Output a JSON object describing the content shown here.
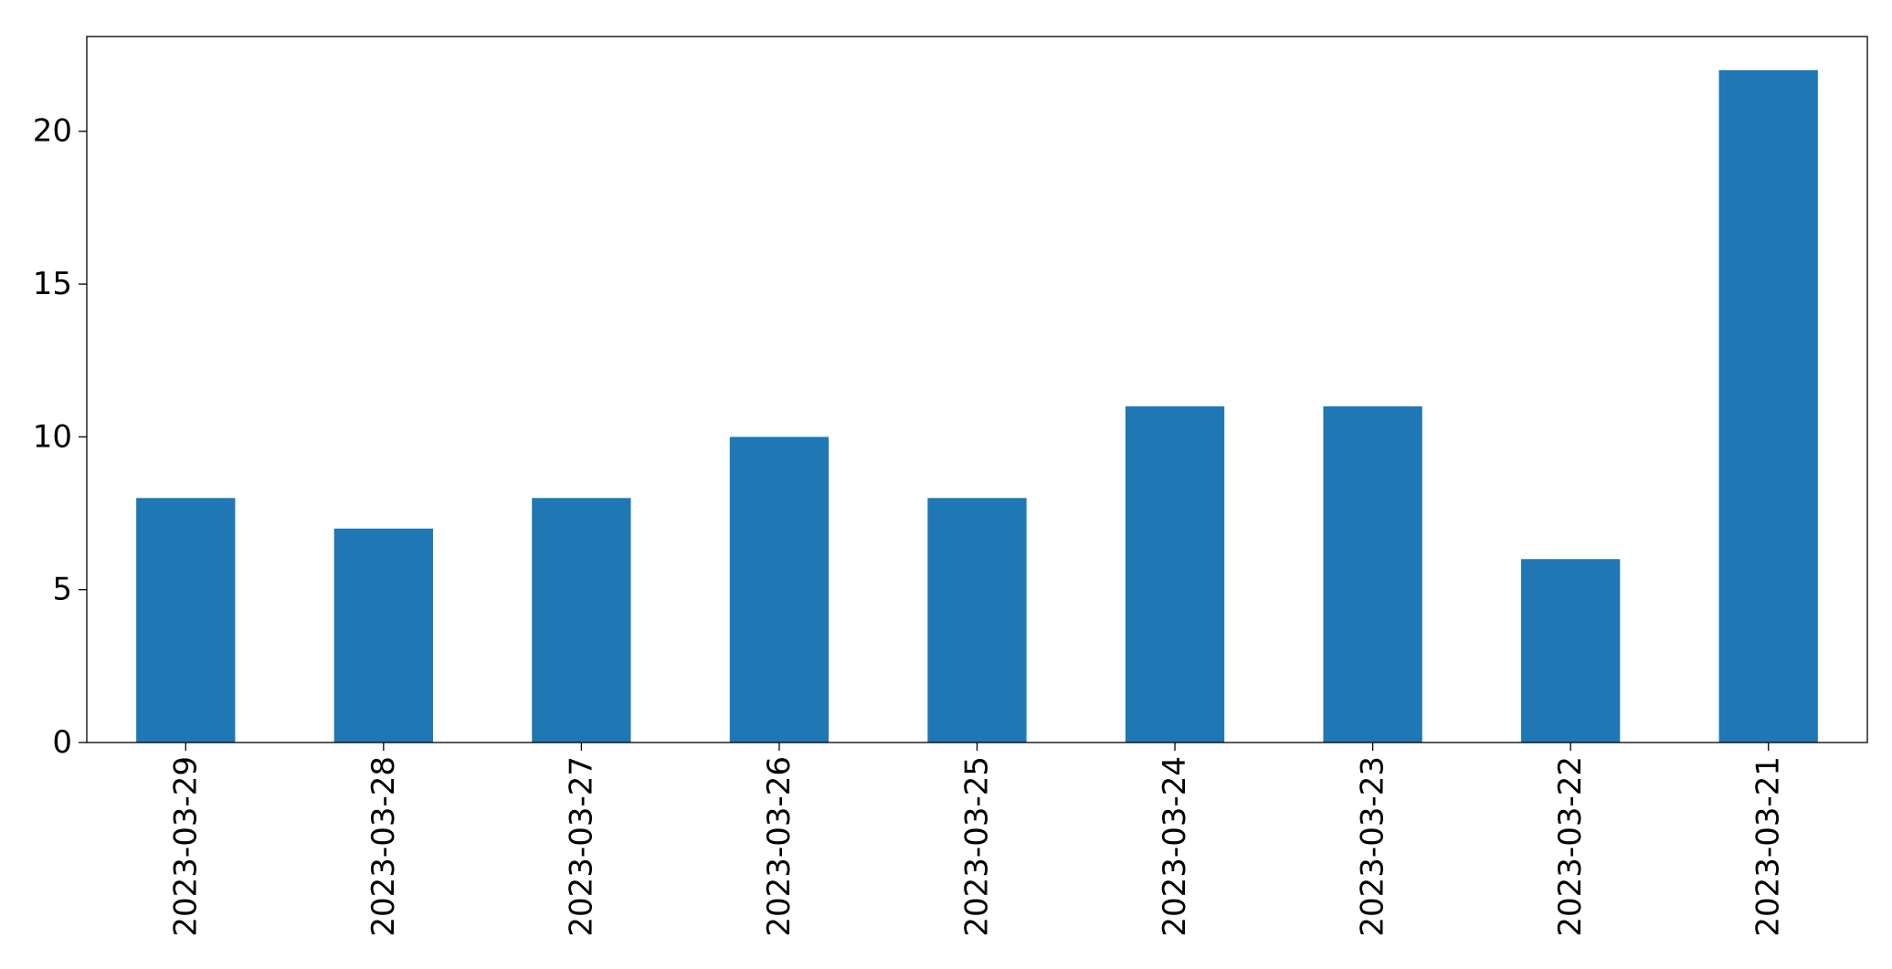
{
  "chart_data": {
    "type": "bar",
    "title": "",
    "xlabel": "",
    "ylabel": "",
    "categories": [
      "2023-03-29",
      "2023-03-28",
      "2023-03-27",
      "2023-03-26",
      "2023-03-25",
      "2023-03-24",
      "2023-03-23",
      "2023-03-22",
      "2023-03-21"
    ],
    "values": [
      8,
      7,
      8,
      10,
      8,
      11,
      11,
      6,
      22
    ],
    "ylim": [
      0,
      23.1
    ],
    "yticks": [
      0,
      5,
      10,
      15,
      20
    ],
    "bar_color": "#1f77b4",
    "grid": false,
    "legend": "none",
    "x_tick_rotation": "vertical"
  }
}
